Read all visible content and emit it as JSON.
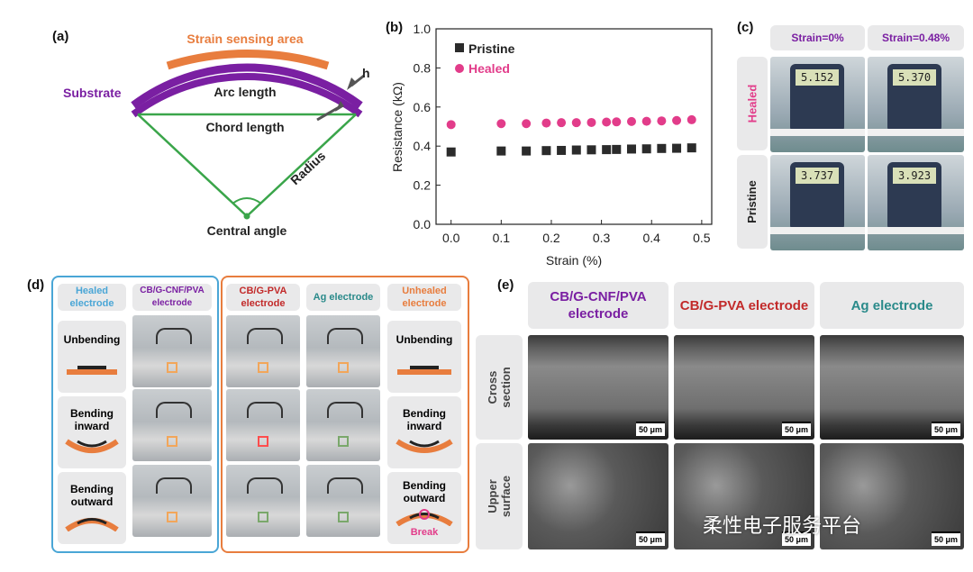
{
  "panel_labels": {
    "a": "(a)",
    "b": "(b)",
    "c": "(c)",
    "d": "(d)",
    "e": "(e)"
  },
  "colors": {
    "purple": "#7a1fa2",
    "orange": "#e87d3e",
    "green": "#3aa54a",
    "pink": "#e23c8a",
    "black": "#2b2b2b",
    "blue": "#4aa6d6",
    "teal": "#2a8a8a",
    "red": "#c22a2a"
  },
  "panel_a": {
    "strain_sensing_area": "Strain sensing area",
    "substrate": "Substrate",
    "arc_length": "Arc length",
    "h": "h",
    "chord_length": "Chord length",
    "radius": "Radius",
    "central_angle": "Central angle"
  },
  "chart_data": {
    "type": "scatter",
    "xlabel": "Strain (%)",
    "ylabel": "Resistance (kΩ)",
    "xlim": [
      -0.03,
      0.52
    ],
    "ylim": [
      0.0,
      1.0
    ],
    "xticks": [
      "0.0",
      "0.1",
      "0.2",
      "0.3",
      "0.4",
      "0.5"
    ],
    "yticks": [
      "0.0",
      "0.2",
      "0.4",
      "0.6",
      "0.8",
      "1.0"
    ],
    "series": [
      {
        "name": "Pristine",
        "marker": "square",
        "color": "#2b2b2b",
        "x": [
          0.0,
          0.1,
          0.15,
          0.19,
          0.22,
          0.25,
          0.28,
          0.31,
          0.33,
          0.36,
          0.39,
          0.42,
          0.45,
          0.48
        ],
        "y": [
          0.37,
          0.375,
          0.375,
          0.377,
          0.378,
          0.38,
          0.381,
          0.382,
          0.383,
          0.385,
          0.386,
          0.388,
          0.389,
          0.391
        ]
      },
      {
        "name": "Healed",
        "marker": "circle",
        "color": "#e23c8a",
        "x": [
          0.0,
          0.1,
          0.15,
          0.19,
          0.22,
          0.25,
          0.28,
          0.31,
          0.33,
          0.36,
          0.39,
          0.42,
          0.45,
          0.48
        ],
        "y": [
          0.51,
          0.515,
          0.515,
          0.518,
          0.52,
          0.52,
          0.521,
          0.523,
          0.524,
          0.526,
          0.527,
          0.529,
          0.531,
          0.535
        ]
      }
    ]
  },
  "panel_c": {
    "col_headers": [
      "Strain=0%",
      "Strain=0.48%"
    ],
    "row_headers": [
      "Healed",
      "Pristine"
    ],
    "readings": [
      "5.152",
      "5.370",
      "3.737",
      "3.923"
    ]
  },
  "panel_d": {
    "healed_header": "Healed electrode",
    "cnf_header": "CB/G-CNF/PVA electrode",
    "pva_header": "CB/G-PVA electrode",
    "ag_header": "Ag electrode",
    "unhealed_header": "Unhealed electrode",
    "states": [
      "Unbending",
      "Bending inward",
      "Bending outward"
    ],
    "break_label": "Break"
  },
  "panel_e": {
    "col_headers": [
      "CB/G-CNF/PVA electrode",
      "CB/G-PVA electrode",
      "Ag electrode"
    ],
    "row_headers": [
      "Cross section",
      "Upper surface"
    ],
    "scale_bar": "50 μm"
  },
  "watermark": "柔性电子服务平台"
}
